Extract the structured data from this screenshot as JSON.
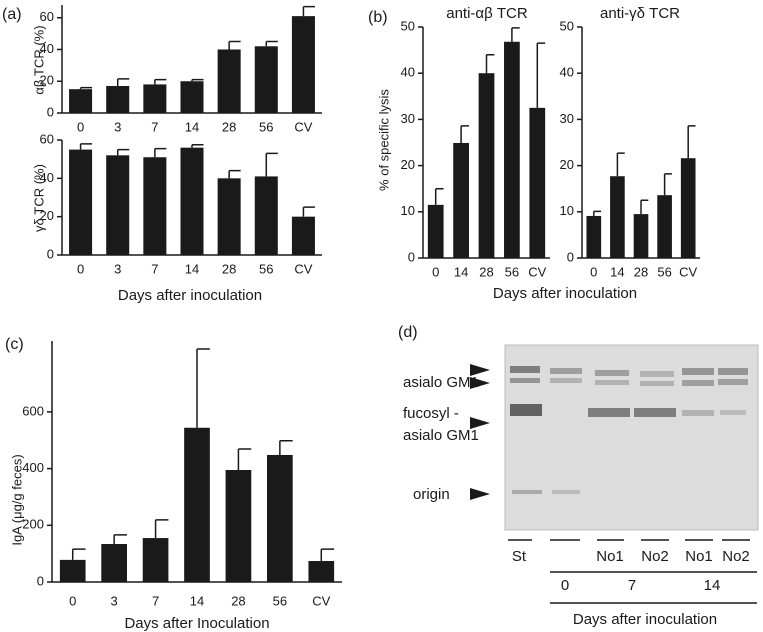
{
  "panel_labels": [
    "(a)",
    "(b)",
    "(c)",
    "(d)"
  ],
  "chart_data": [
    {
      "type": "bar",
      "ylabel": "αβ TCR (%)",
      "categories": [
        "0",
        "3",
        "7",
        "14",
        "28",
        "56",
        "CV"
      ],
      "values": [
        15,
        17,
        18,
        20,
        40,
        42,
        61
      ],
      "errors": [
        1,
        4.5,
        3,
        1,
        5,
        3,
        6
      ],
      "ylim": [
        0,
        68
      ],
      "yticks": [
        0,
        20,
        40,
        60
      ],
      "color": "#1a1a1a"
    },
    {
      "type": "bar",
      "ylabel": "γδ TCR (%)",
      "xlabel": "Days after inoculation",
      "categories": [
        "0",
        "3",
        "7",
        "14",
        "28",
        "56",
        "CV"
      ],
      "values": [
        55,
        52,
        51,
        56,
        40,
        41,
        20
      ],
      "errors": [
        3,
        3,
        4.5,
        1.5,
        4,
        12,
        5
      ],
      "ylim": [
        0,
        60
      ],
      "yticks": [
        0,
        20,
        40,
        60
      ],
      "color": "#1a1a1a"
    },
    {
      "type": "bar",
      "title": "anti-αβ TCR",
      "ylabel": "% of specific lysis",
      "xlabel": "Days after inoculation",
      "categories": [
        "0",
        "14",
        "28",
        "56",
        "CV"
      ],
      "values": [
        11.5,
        24.9,
        40,
        46.8,
        32.5
      ],
      "errors": [
        3.5,
        3.7,
        4,
        3,
        14
      ],
      "ylim": [
        0,
        50
      ],
      "yticks": [
        0,
        10,
        20,
        30,
        40,
        50
      ],
      "color": "#1a1a1a"
    },
    {
      "type": "bar",
      "title": "anti-γδ TCR",
      "categories": [
        "0",
        "14",
        "28",
        "56",
        "CV"
      ],
      "values": [
        9.1,
        17.7,
        9.5,
        13.6,
        21.6
      ],
      "errors": [
        1,
        5,
        3,
        4.6,
        7
      ],
      "ylim": [
        0,
        50
      ],
      "yticks": [
        0,
        10,
        20,
        30,
        40,
        50
      ],
      "color": "#1a1a1a"
    },
    {
      "type": "bar",
      "ylabel": "IgA (μg/g feces)",
      "xlabel": "Days after Inoculation",
      "categories": [
        "0",
        "3",
        "7",
        "14",
        "28",
        "56",
        "CV"
      ],
      "values": [
        78,
        134,
        155,
        544,
        395,
        448,
        74
      ],
      "errors": [
        38,
        32,
        64,
        278,
        74,
        50,
        42
      ],
      "ylim": [
        0,
        850
      ],
      "yticks": [
        0,
        200,
        400,
        600
      ],
      "color": "#1a1a1a"
    }
  ],
  "tlc": {
    "labels": [
      "asialo GM1",
      "fucosyl -",
      "asialo GM1",
      "origin"
    ],
    "lanes": [
      "St",
      "No1",
      "No2",
      "No1",
      "No2"
    ],
    "days": [
      "0",
      "7",
      "14"
    ],
    "xlabel": "Days after inoculation"
  }
}
